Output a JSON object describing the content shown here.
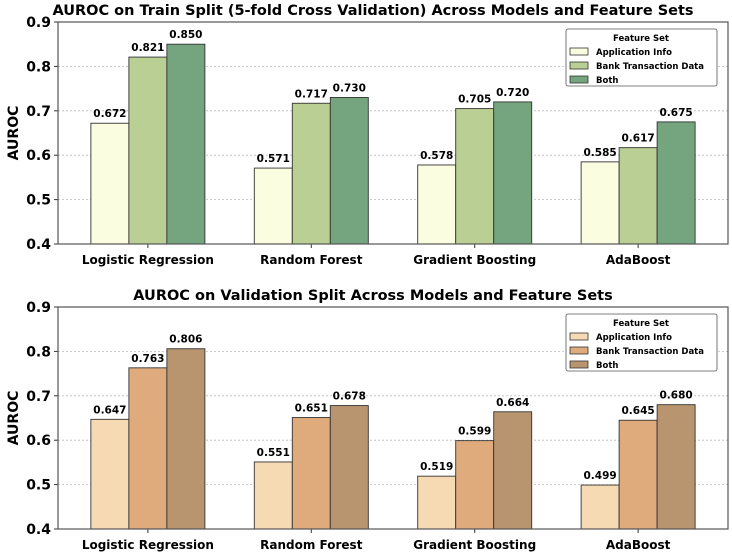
{
  "chart_data": [
    {
      "type": "bar",
      "title": "AUROC on Train Split (5-fold Cross Validation) Across Models and Feature Sets",
      "xlabel": "",
      "ylabel": "AUROC",
      "ylim": [
        0.4,
        0.9
      ],
      "yticks": [
        "0.4",
        "0.5",
        "0.6",
        "0.7",
        "0.8",
        "0.9"
      ],
      "grid": "y dotted",
      "legend_title": "Feature Set",
      "legend_position": "top-right",
      "categories": [
        "Logistic Regression",
        "Random Forest",
        "Gradient Boosting",
        "AdaBoost"
      ],
      "series": [
        {
          "name": "Application Info",
          "color": "#fbfde0",
          "values": [
            0.672,
            0.571,
            0.578,
            0.585
          ],
          "labels": [
            "0.672",
            "0.571",
            "0.578",
            "0.585"
          ]
        },
        {
          "name": "Bank Transaction Data",
          "color": "#b9cf93",
          "values": [
            0.821,
            0.717,
            0.705,
            0.617
          ],
          "labels": [
            "0.821",
            "0.717",
            "0.705",
            "0.617"
          ]
        },
        {
          "name": "Both",
          "color": "#74a57e",
          "values": [
            0.85,
            0.73,
            0.72,
            0.675
          ],
          "labels": [
            "0.850",
            "0.730",
            "0.720",
            "0.675"
          ]
        }
      ]
    },
    {
      "type": "bar",
      "title": "AUROC on Validation Split Across Models and Feature Sets",
      "xlabel": "",
      "ylabel": "AUROC",
      "ylim": [
        0.4,
        0.9
      ],
      "yticks": [
        "0.4",
        "0.5",
        "0.6",
        "0.7",
        "0.8",
        "0.9"
      ],
      "grid": "y dotted",
      "legend_title": "Feature Set",
      "legend_position": "top-right",
      "categories": [
        "Logistic Regression",
        "Random Forest",
        "Gradient Boosting",
        "AdaBoost"
      ],
      "series": [
        {
          "name": "Application Info",
          "color": "#f6dab4",
          "values": [
            0.647,
            0.551,
            0.519,
            0.499
          ],
          "labels": [
            "0.647",
            "0.551",
            "0.519",
            "0.499"
          ]
        },
        {
          "name": "Bank Transaction Data",
          "color": "#dfab7c",
          "values": [
            0.763,
            0.651,
            0.599,
            0.645
          ],
          "labels": [
            "0.763",
            "0.651",
            "0.599",
            "0.645"
          ]
        },
        {
          "name": "Both",
          "color": "#b8956f",
          "values": [
            0.806,
            0.678,
            0.664,
            0.68
          ],
          "labels": [
            "0.806",
            "0.678",
            "0.664",
            "0.680"
          ]
        }
      ]
    }
  ]
}
